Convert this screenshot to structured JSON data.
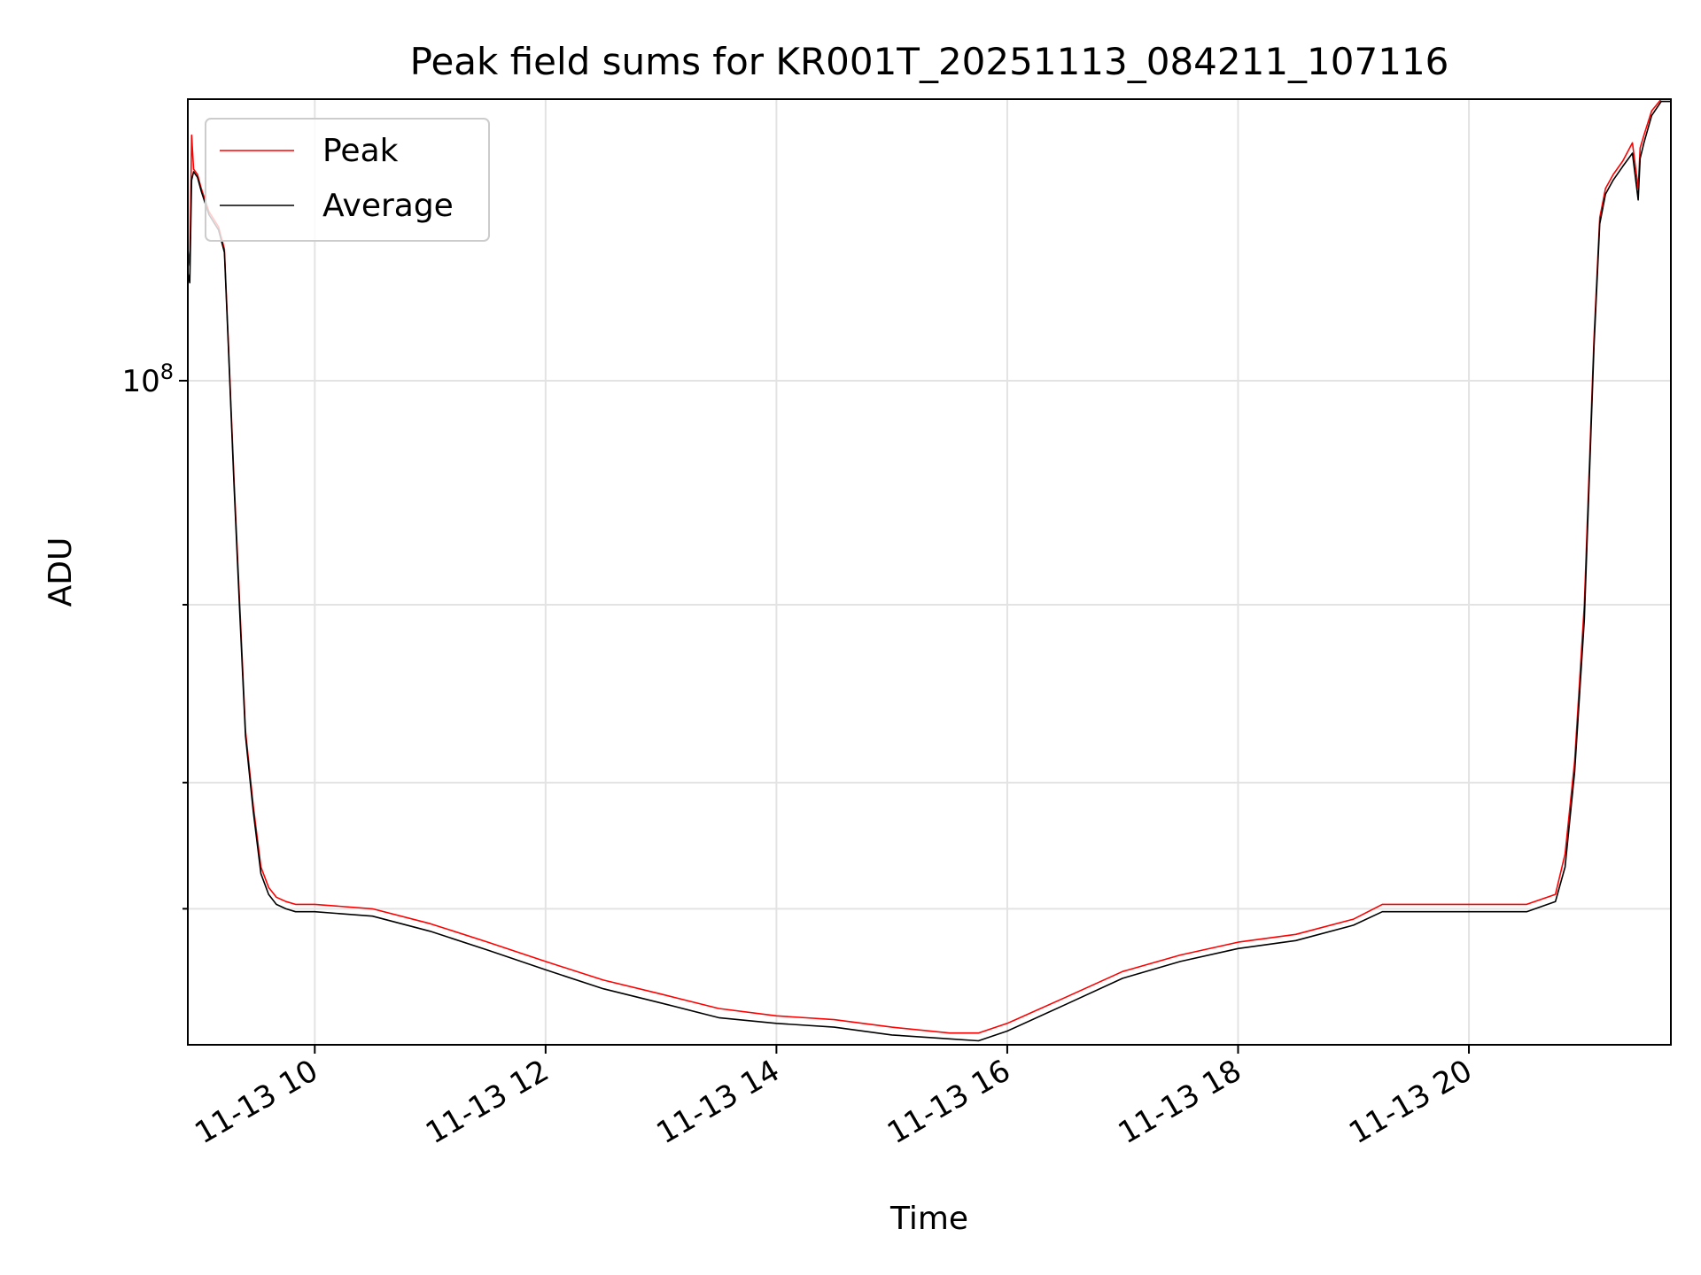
{
  "chart_data": {
    "type": "line",
    "title": "Peak field sums for KR001T_20251113_084211_107116",
    "xlabel": "Time",
    "ylabel": "ADU",
    "yscale": "log",
    "grid": true,
    "legend_position": "upper-left",
    "xlim": [
      "2025-11-13 08:54",
      "2025-11-13 21:45"
    ],
    "ylim": [
      22000000,
      190000000
    ],
    "x_ticks": [
      {
        "value": "2025-11-13 10:00",
        "label": "11-13 10"
      },
      {
        "value": "2025-11-13 12:00",
        "label": "11-13 12"
      },
      {
        "value": "2025-11-13 14:00",
        "label": "11-13 14"
      },
      {
        "value": "2025-11-13 16:00",
        "label": "11-13 16"
      },
      {
        "value": "2025-11-13 18:00",
        "label": "11-13 18"
      },
      {
        "value": "2025-11-13 20:00",
        "label": "11-13 20"
      }
    ],
    "y_major_ticks": [
      {
        "value": 100000000,
        "base": "10",
        "exponent": "8"
      }
    ],
    "y_minor_ticks": [
      30000000,
      40000000,
      60000000
    ],
    "colors": {
      "Peak": "#ff0000",
      "Average": "#000000"
    },
    "series": [
      {
        "name": "Peak",
        "x": [
          "2025-11-13 08:54",
          "2025-11-13 08:55",
          "2025-11-13 08:56",
          "2025-11-13 08:57",
          "2025-11-13 08:59",
          "2025-11-13 09:01",
          "2025-11-13 09:05",
          "2025-11-13 09:10",
          "2025-11-13 09:13",
          "2025-11-13 09:15",
          "2025-11-13 09:18",
          "2025-11-13 09:21",
          "2025-11-13 09:24",
          "2025-11-13 09:28",
          "2025-11-13 09:32",
          "2025-11-13 09:36",
          "2025-11-13 09:40",
          "2025-11-13 09:45",
          "2025-11-13 09:50",
          "2025-11-13 10:00",
          "2025-11-13 10:30",
          "2025-11-13 11:00",
          "2025-11-13 11:30",
          "2025-11-13 12:00",
          "2025-11-13 12:30",
          "2025-11-13 13:00",
          "2025-11-13 13:30",
          "2025-11-13 14:00",
          "2025-11-13 14:30",
          "2025-11-13 15:00",
          "2025-11-13 15:30",
          "2025-11-13 15:45",
          "2025-11-13 16:00",
          "2025-11-13 16:30",
          "2025-11-13 17:00",
          "2025-11-13 17:30",
          "2025-11-13 18:00",
          "2025-11-13 18:30",
          "2025-11-13 19:00",
          "2025-11-13 19:15",
          "2025-11-13 19:30",
          "2025-11-13 20:00",
          "2025-11-13 20:30",
          "2025-11-13 20:45",
          "2025-11-13 20:50",
          "2025-11-13 20:55",
          "2025-11-13 21:00",
          "2025-11-13 21:05",
          "2025-11-13 21:08",
          "2025-11-13 21:11",
          "2025-11-13 21:15",
          "2025-11-13 21:20",
          "2025-11-13 21:25",
          "2025-11-13 21:28",
          "2025-11-13 21:29",
          "2025-11-13 21:31",
          "2025-11-13 21:35",
          "2025-11-13 21:40",
          "2025-11-13 21:45"
        ],
        "values": [
          135000000,
          130000000,
          175000000,
          162000000,
          160000000,
          155000000,
          147000000,
          142000000,
          135000000,
          110000000,
          80000000,
          60000000,
          45000000,
          38000000,
          33000000,
          31500000,
          30800000,
          30500000,
          30300000,
          30300000,
          30000000,
          29000000,
          27800000,
          26600000,
          25500000,
          24700000,
          23900000,
          23500000,
          23300000,
          22900000,
          22600000,
          22600000,
          23100000,
          24500000,
          26000000,
          27000000,
          27800000,
          28300000,
          29300000,
          30300000,
          30300000,
          30300000,
          30300000,
          31000000,
          34000000,
          42000000,
          60000000,
          110000000,
          145000000,
          155000000,
          160000000,
          165000000,
          172000000,
          155000000,
          170000000,
          175000000,
          185000000,
          190000000,
          190000000
        ]
      },
      {
        "name": "Average",
        "x": [
          "2025-11-13 08:54",
          "2025-11-13 08:55",
          "2025-11-13 08:56",
          "2025-11-13 08:57",
          "2025-11-13 08:59",
          "2025-11-13 09:01",
          "2025-11-13 09:05",
          "2025-11-13 09:10",
          "2025-11-13 09:13",
          "2025-11-13 09:15",
          "2025-11-13 09:18",
          "2025-11-13 09:21",
          "2025-11-13 09:24",
          "2025-11-13 09:28",
          "2025-11-13 09:32",
          "2025-11-13 09:36",
          "2025-11-13 09:40",
          "2025-11-13 09:45",
          "2025-11-13 09:50",
          "2025-11-13 10:00",
          "2025-11-13 10:30",
          "2025-11-13 11:00",
          "2025-11-13 11:30",
          "2025-11-13 12:00",
          "2025-11-13 12:30",
          "2025-11-13 13:00",
          "2025-11-13 13:30",
          "2025-11-13 14:00",
          "2025-11-13 14:30",
          "2025-11-13 15:00",
          "2025-11-13 15:30",
          "2025-11-13 15:45",
          "2025-11-13 16:00",
          "2025-11-13 16:30",
          "2025-11-13 17:00",
          "2025-11-13 17:30",
          "2025-11-13 18:00",
          "2025-11-13 18:30",
          "2025-11-13 19:00",
          "2025-11-13 19:15",
          "2025-11-13 19:30",
          "2025-11-13 20:00",
          "2025-11-13 20:30",
          "2025-11-13 20:45",
          "2025-11-13 20:50",
          "2025-11-13 20:55",
          "2025-11-13 21:00",
          "2025-11-13 21:05",
          "2025-11-13 21:08",
          "2025-11-13 21:11",
          "2025-11-13 21:15",
          "2025-11-13 21:20",
          "2025-11-13 21:25",
          "2025-11-13 21:28",
          "2025-11-13 21:29",
          "2025-11-13 21:31",
          "2025-11-13 21:35",
          "2025-11-13 21:40",
          "2025-11-13 21:45"
        ],
        "values": [
          128000000,
          125000000,
          158000000,
          161000000,
          159000000,
          154000000,
          146000000,
          141000000,
          134000000,
          109000000,
          79000000,
          59000000,
          44500000,
          37500000,
          32500000,
          31000000,
          30300000,
          30000000,
          29800000,
          29800000,
          29500000,
          28500000,
          27300000,
          26100000,
          25000000,
          24200000,
          23400000,
          23100000,
          22900000,
          22500000,
          22300000,
          22200000,
          22700000,
          24100000,
          25600000,
          26600000,
          27400000,
          27900000,
          28900000,
          29800000,
          29800000,
          29800000,
          29800000,
          30500000,
          33000000,
          41000000,
          58000000,
          108000000,
          143000000,
          153000000,
          158000000,
          163000000,
          168000000,
          151000000,
          166000000,
          172000000,
          183000000,
          189000000,
          189000000
        ]
      }
    ]
  }
}
